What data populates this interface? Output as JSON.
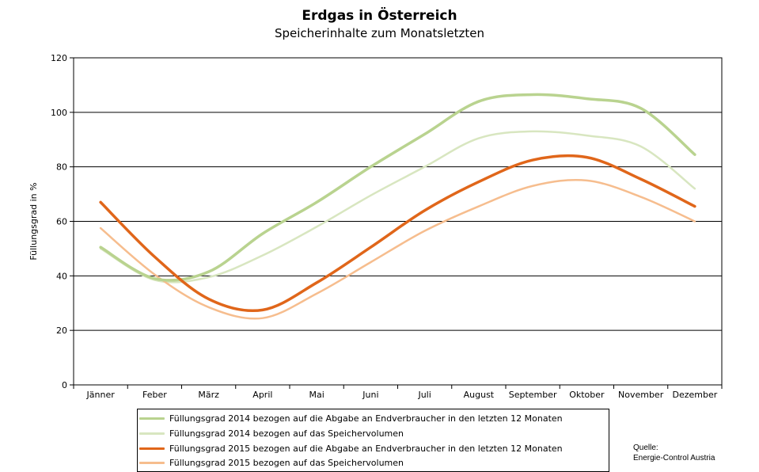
{
  "chart_data": {
    "type": "line",
    "title": "Erdgas in Österreich",
    "subtitle": "Speicherinhalte zum Monatsletzten",
    "xlabel": "",
    "ylabel": "Füllungsgrad in %",
    "categories": [
      "Jänner",
      "Feber",
      "März",
      "April",
      "Mai",
      "Juni",
      "Juli",
      "August",
      "September",
      "Oktober",
      "November",
      "Dezember"
    ],
    "ylim": [
      0,
      120
    ],
    "yticks": [
      0,
      20,
      40,
      60,
      80,
      100,
      120
    ],
    "grid": "horizontal",
    "legend_placement": "bottom",
    "series": [
      {
        "name": "Füllungsgrad 2014 bezogen auf die Abgabe an Endverbraucher in den letzten 12 Monaten",
        "color": "#b9d38f",
        "width": 3.5,
        "values": [
          50.5,
          39,
          41.5,
          55.5,
          67,
          80,
          92,
          104,
          106.5,
          105,
          101.5,
          84.5
        ]
      },
      {
        "name": "Füllungsgrad 2014 bezogen auf das Speichervolumen",
        "color": "#d8e6c0",
        "width": 2.5,
        "values": [
          50,
          38.5,
          39.5,
          47.5,
          58,
          69.5,
          80,
          90.5,
          93,
          91.5,
          87.5,
          72
        ]
      },
      {
        "name": "Füllungsgrad 2015 bezogen auf die Abgabe an Endverbraucher in den letzten 12 Monaten",
        "color": "#e0661a",
        "width": 3.5,
        "values": [
          67,
          47,
          31.5,
          27.5,
          37.5,
          50.5,
          64,
          74.5,
          82.5,
          83.5,
          75.5,
          65.5
        ]
      },
      {
        "name": "Füllungsgrad 2015 bezogen auf das Speichervolumen",
        "color": "#f6bd8e",
        "width": 2.5,
        "values": [
          57.5,
          40.5,
          28.5,
          24.5,
          33.5,
          45,
          56.5,
          65.5,
          73,
          75,
          69,
          60
        ]
      }
    ]
  },
  "source": {
    "label": "Quelle:",
    "name": "Energie-Control Austria"
  }
}
